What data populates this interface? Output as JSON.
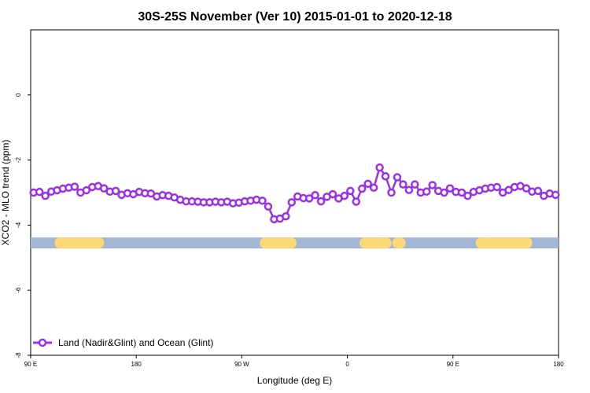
{
  "chart_data": {
    "type": "line",
    "title": "30S-25S November (Ver 10)   2015-01-01 to 2020-12-18",
    "xlabel": "Longitude (deg E)",
    "ylabel": "XCO2 - MLO trend (ppm)",
    "xlim": [
      90,
      540
    ],
    "ylim": [
      -8,
      2
    ],
    "x_ticks": [
      {
        "value": 90,
        "label": "90 E"
      },
      {
        "value": 180,
        "label": "180"
      },
      {
        "value": 270,
        "label": "90 W"
      },
      {
        "value": 360,
        "label": "0"
      },
      {
        "value": 450,
        "label": "90 E"
      },
      {
        "value": 540,
        "label": "180"
      }
    ],
    "y_ticks": [
      {
        "value": 0,
        "label": "0"
      },
      {
        "value": -2,
        "label": "-2"
      },
      {
        "value": -4,
        "label": "-4"
      },
      {
        "value": -6,
        "label": "-6"
      },
      {
        "value": -8,
        "label": "-8"
      }
    ],
    "grid": false,
    "legend_position": "bottom-left",
    "series": [
      {
        "name": "Land (Nadir&Glint) and Ocean (Glint)",
        "color": "#9b30e8",
        "x": [
          92.5,
          97.5,
          102.5,
          107.5,
          112.5,
          117.5,
          122.5,
          127.5,
          132.5,
          137.5,
          142.5,
          147.5,
          152.5,
          157.5,
          162.5,
          167.5,
          172.5,
          177.5,
          182.5,
          187.5,
          192.5,
          197.5,
          202.5,
          207.5,
          212.5,
          217.5,
          222.5,
          227.5,
          232.5,
          237.5,
          242.5,
          247.5,
          252.5,
          257.5,
          262.5,
          267.5,
          272.5,
          277.5,
          282.5,
          287.5,
          292.5,
          297.5,
          302.5,
          307.5,
          312.5,
          317.5,
          322.5,
          327.5,
          332.5,
          337.5,
          342.5,
          347.5,
          352.5,
          357.5,
          362.5,
          367.5,
          372.5,
          377.5,
          382.5,
          387.5,
          392.5,
          397.5,
          402.5,
          407.5,
          412.5,
          417.5,
          422.5,
          427.5,
          432.5,
          437.5,
          442.5,
          447.5,
          452.5,
          457.5,
          462.5,
          467.5,
          472.5,
          477.5,
          482.5,
          487.5,
          492.5,
          497.5,
          502.5,
          507.5,
          512.5,
          517.5,
          522.5,
          527.5,
          532.5,
          537.5
        ],
        "y": [
          -3.0,
          -2.98,
          -3.1,
          -2.97,
          -2.93,
          -2.88,
          -2.85,
          -2.82,
          -3.0,
          -2.93,
          -2.83,
          -2.8,
          -2.87,
          -2.97,
          -2.95,
          -3.07,
          -3.02,
          -3.05,
          -2.98,
          -3.02,
          -3.03,
          -3.12,
          -3.08,
          -3.1,
          -3.15,
          -3.22,
          -3.27,
          -3.27,
          -3.28,
          -3.3,
          -3.3,
          -3.28,
          -3.3,
          -3.28,
          -3.33,
          -3.31,
          -3.27,
          -3.25,
          -3.22,
          -3.25,
          -3.43,
          -3.82,
          -3.8,
          -3.73,
          -3.3,
          -3.12,
          -3.17,
          -3.18,
          -3.08,
          -3.27,
          -3.13,
          -3.05,
          -3.18,
          -3.1,
          -2.95,
          -3.28,
          -2.88,
          -2.73,
          -2.85,
          -2.23,
          -2.5,
          -3.0,
          -2.53,
          -2.75,
          -2.92,
          -2.75,
          -3.0,
          -2.97,
          -2.77,
          -2.95,
          -3.0,
          -2.87,
          -2.98,
          -3.0,
          -3.1,
          -2.98,
          -2.93,
          -2.88,
          -2.85,
          -2.83,
          -3.0,
          -2.92,
          -2.83,
          -2.8,
          -2.87,
          -2.97,
          -2.95,
          -3.1,
          -3.03,
          -3.07
        ]
      }
    ],
    "surface_band": {
      "y": -4.55,
      "ocean_color": "#a3b6d3",
      "land_color": "#fcd876",
      "land_segments": [
        [
          115,
          148
        ],
        [
          290,
          312
        ],
        [
          375,
          393
        ],
        [
          403,
          405
        ],
        [
          474,
          513
        ]
      ]
    }
  }
}
